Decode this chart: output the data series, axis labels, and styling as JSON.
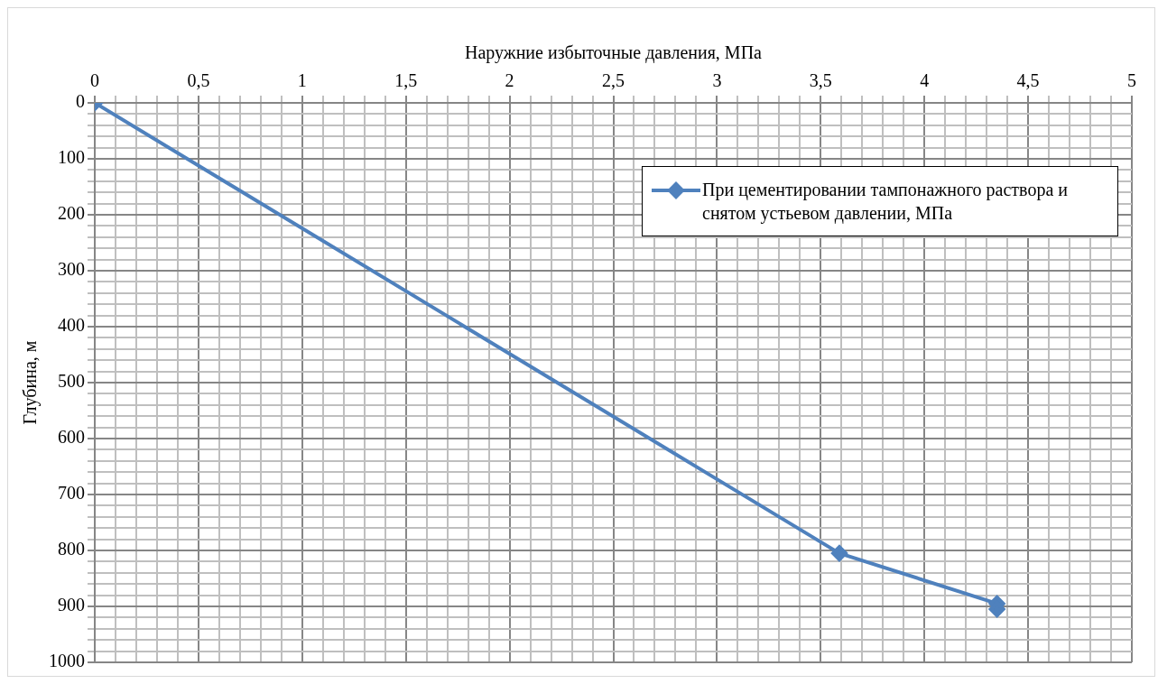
{
  "chart_data": {
    "type": "line",
    "xlabel": "Наружние избыточные давления, МПа",
    "ylabel": "Глубина, м",
    "series": [
      {
        "name": "При цементировании тампонажного раствора и снятом устьевом давлении, МПа",
        "color": "#4f81bd",
        "x": [
          0,
          3.59,
          4.35,
          4.35
        ],
        "values": [
          0,
          805,
          895,
          905
        ]
      }
    ],
    "xlim": [
      0,
      5
    ],
    "ylim": [
      1000,
      0
    ],
    "xticks": [
      0,
      {
        "value": 0.1,
        "label": null
      },
      {
        "value": 0.2,
        "label": null
      },
      {
        "value": 0.3,
        "label": null
      },
      {
        "value": 0.4,
        "label": null
      },
      {
        "value": 0.5,
        "label": "0,5"
      },
      {
        "value": 0.6,
        "label": null
      },
      {
        "value": 0.7,
        "label": null
      },
      {
        "value": 0.8,
        "label": null
      },
      {
        "value": 0.9,
        "label": null
      },
      1,
      {
        "value": 1.1,
        "label": null
      },
      {
        "value": 1.2,
        "label": null
      },
      {
        "value": 1.3,
        "label": null
      },
      {
        "value": 1.4,
        "label": null
      },
      {
        "value": 1.5,
        "label": "1,5"
      },
      {
        "value": 1.6,
        "label": null
      },
      {
        "value": 1.7,
        "label": null
      },
      {
        "value": 1.8,
        "label": null
      },
      {
        "value": 1.9,
        "label": null
      },
      2,
      {
        "value": 2.1,
        "label": null
      },
      {
        "value": 2.2,
        "label": null
      },
      {
        "value": 2.3,
        "label": null
      },
      {
        "value": 2.4,
        "label": null
      },
      {
        "value": 2.5,
        "label": "2,5"
      },
      {
        "value": 2.6,
        "label": null
      },
      {
        "value": 2.7,
        "label": null
      },
      {
        "value": 2.8,
        "label": null
      },
      {
        "value": 2.9,
        "label": null
      },
      3,
      {
        "value": 3.1,
        "label": null
      },
      {
        "value": 3.2,
        "label": null
      },
      {
        "value": 3.3,
        "label": null
      },
      {
        "value": 3.4,
        "label": null
      },
      {
        "value": 3.5,
        "label": "3,5"
      },
      {
        "value": 3.6,
        "label": null
      },
      {
        "value": 3.7,
        "label": null
      },
      {
        "value": 3.8,
        "label": null
      },
      {
        "value": 3.9,
        "label": null
      },
      4,
      {
        "value": 4.1,
        "label": null
      },
      {
        "value": 4.2,
        "label": null
      },
      {
        "value": 4.3,
        "label": null
      },
      {
        "value": 4.4,
        "label": null
      },
      {
        "value": 4.5,
        "label": "4,5"
      },
      {
        "value": 4.6,
        "label": null
      },
      {
        "value": 4.7,
        "label": null
      },
      {
        "value": 4.8,
        "label": null
      },
      {
        "value": 4.9,
        "label": null
      },
      5
    ],
    "yticks": [
      0,
      {
        "value": 20,
        "label": null
      },
      {
        "value": 40,
        "label": null
      },
      {
        "value": 60,
        "label": null
      },
      {
        "value": 80,
        "label": null
      },
      100,
      {
        "value": 120,
        "label": null
      },
      {
        "value": 140,
        "label": null
      },
      {
        "value": 160,
        "label": null
      },
      {
        "value": 180,
        "label": null
      },
      200,
      {
        "value": 220,
        "label": null
      },
      {
        "value": 240,
        "label": null
      },
      {
        "value": 260,
        "label": null
      },
      {
        "value": 280,
        "label": null
      },
      300,
      {
        "value": 320,
        "label": null
      },
      {
        "value": 340,
        "label": null
      },
      {
        "value": 360,
        "label": null
      },
      {
        "value": 380,
        "label": null
      },
      400,
      {
        "value": 420,
        "label": null
      },
      {
        "value": 440,
        "label": null
      },
      {
        "value": 460,
        "label": null
      },
      {
        "value": 480,
        "label": null
      },
      500,
      {
        "value": 520,
        "label": null
      },
      {
        "value": 540,
        "label": null
      },
      {
        "value": 560,
        "label": null
      },
      {
        "value": 580,
        "label": null
      },
      600,
      {
        "value": 620,
        "label": null
      },
      {
        "value": 640,
        "label": null
      },
      {
        "value": 660,
        "label": null
      },
      {
        "value": 680,
        "label": null
      },
      700,
      {
        "value": 720,
        "label": null
      },
      {
        "value": 740,
        "label": null
      },
      {
        "value": 760,
        "label": null
      },
      {
        "value": 780,
        "label": null
      },
      800,
      {
        "value": 820,
        "label": null
      },
      {
        "value": 840,
        "label": null
      },
      {
        "value": 860,
        "label": null
      },
      {
        "value": 880,
        "label": null
      },
      900,
      {
        "value": 920,
        "label": null
      },
      {
        "value": 940,
        "label": null
      },
      {
        "value": 960,
        "label": null
      },
      {
        "value": 980,
        "label": null
      },
      1000
    ],
    "grid": true,
    "legend": "top right",
    "marker": "diamond",
    "line_style": "solid"
  }
}
